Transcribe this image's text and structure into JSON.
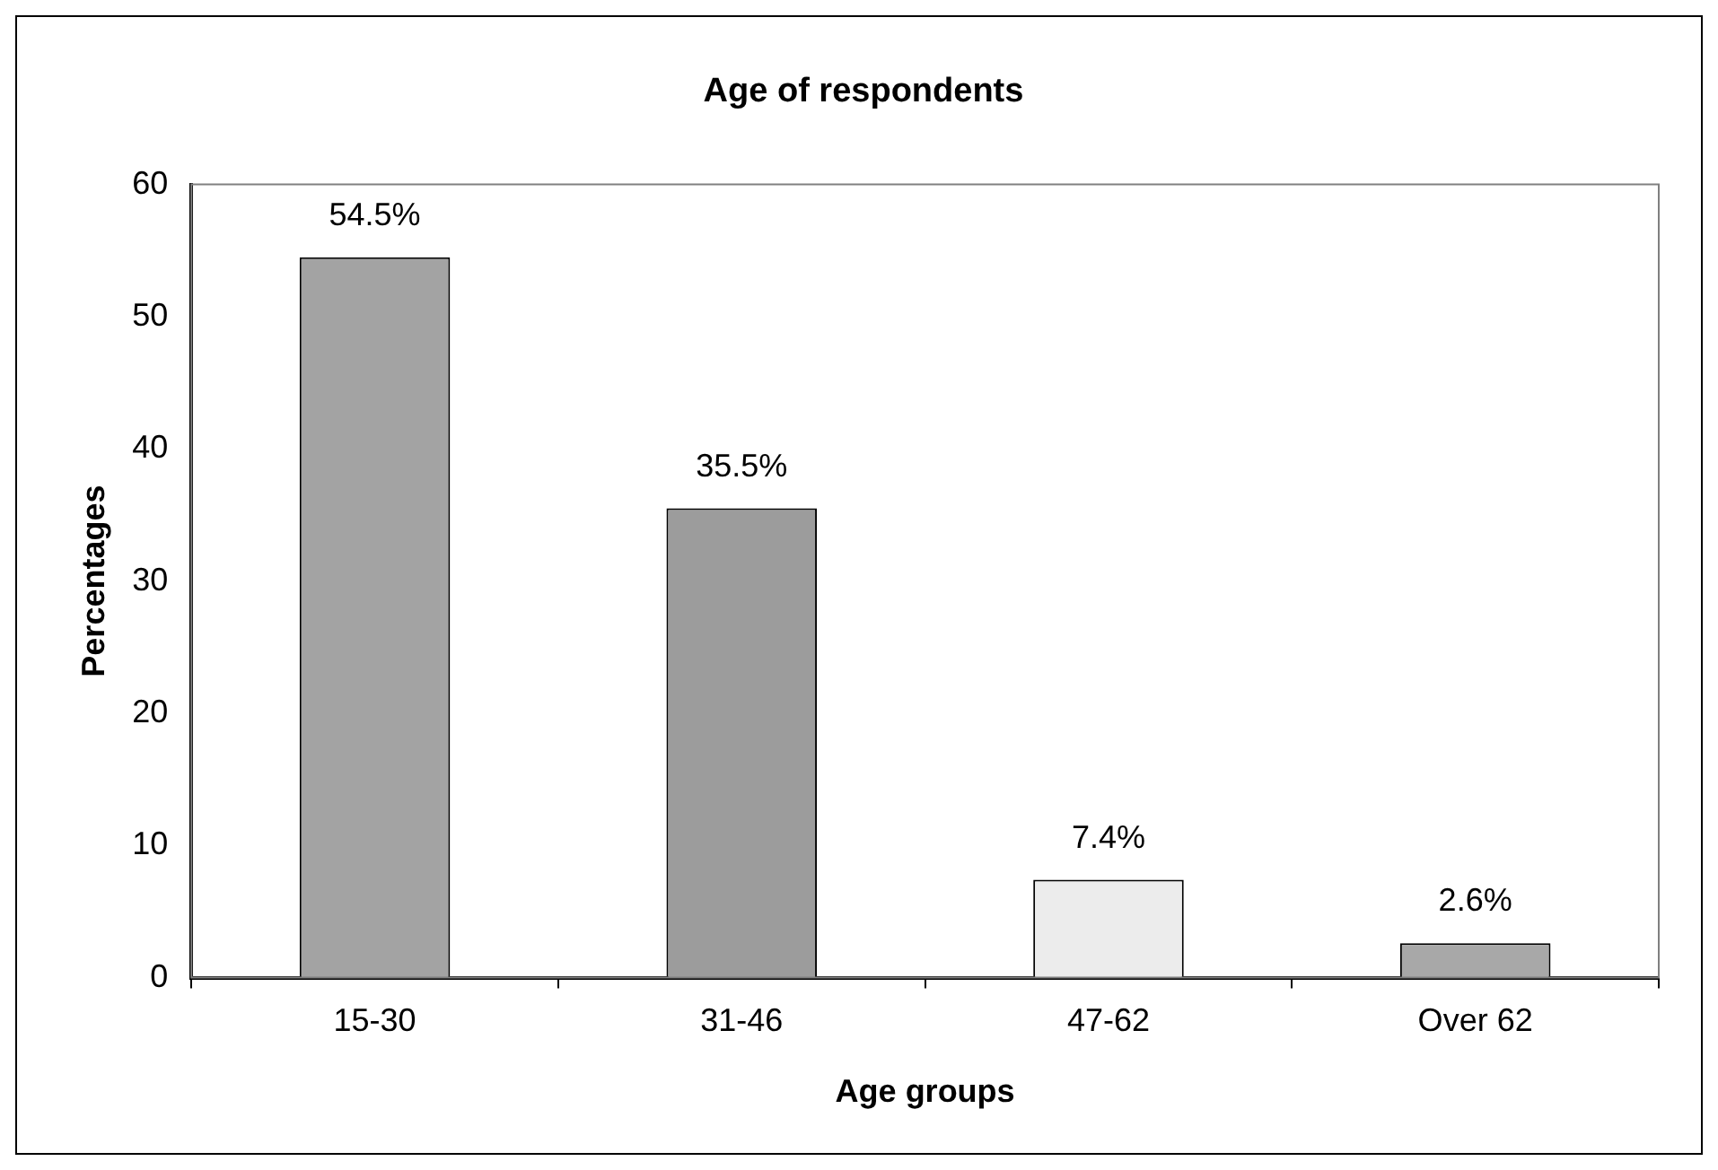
{
  "chart_data": {
    "type": "bar",
    "title": "Age of respondents",
    "xlabel": "Age groups",
    "ylabel": "Percentages",
    "categories": [
      "15-30",
      "31-46",
      "47-62",
      "Over 62"
    ],
    "values": [
      54.5,
      35.5,
      7.4,
      2.6
    ],
    "colors": [
      "#a3a3a3",
      "#9c9c9c",
      "#ececec",
      "#a8a8a8"
    ],
    "value_labels": [
      "54.5%",
      "35.5%",
      "7.4%",
      "2.6%"
    ],
    "ylim": [
      0,
      60
    ],
    "yticks": [
      0,
      10,
      20,
      30,
      40,
      50,
      60
    ],
    "grid": false,
    "legend": false
  }
}
